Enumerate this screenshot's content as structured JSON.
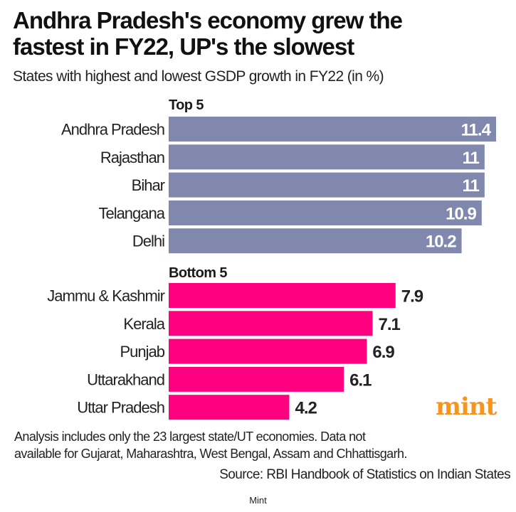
{
  "chart_data": {
    "type": "bar",
    "title": "Andhra Pradesh's economy grew the fastest in FY22, UP's the slowest",
    "title_lines": [
      "Andhra Pradesh's economy grew the",
      "fastest in FY22, UP's the slowest"
    ],
    "subtitle": "States with highest and lowest GSDP growth in FY22 (in %)",
    "xlabel": "",
    "ylabel": "",
    "groups": [
      {
        "name": "Top 5",
        "color": "#8088ad",
        "categories": [
          "Andhra Pradesh",
          "Rajasthan",
          "Bihar",
          "Telangana",
          "Delhi"
        ],
        "values": [
          11.4,
          11,
          11,
          10.9,
          10.2
        ],
        "labels": [
          "11.4",
          "11",
          "11",
          "10.9",
          "10.2"
        ]
      },
      {
        "name": "Bottom 5",
        "color": "#ff0080",
        "categories": [
          "Jammu & Kashmir",
          "Kerala",
          "Punjab",
          "Uttarakhand",
          "Uttar Pradesh"
        ],
        "values": [
          7.9,
          7.1,
          6.9,
          6.1,
          4.2
        ],
        "labels": [
          "7.9",
          "7.1",
          "6.9",
          "6.1",
          "4.2"
        ]
      }
    ],
    "xlim": [
      0,
      11.4
    ],
    "grid": false
  },
  "footnote": [
    "Analysis includes only the 23 largest state/UT economies. Data not",
    "available for Gujarat, Maharashtra, West Bengal, Assam and Chhattisgarh."
  ],
  "source": "Source: RBI Handbook of Statistics on Indian States",
  "logo": "mint",
  "credit": "Mint"
}
